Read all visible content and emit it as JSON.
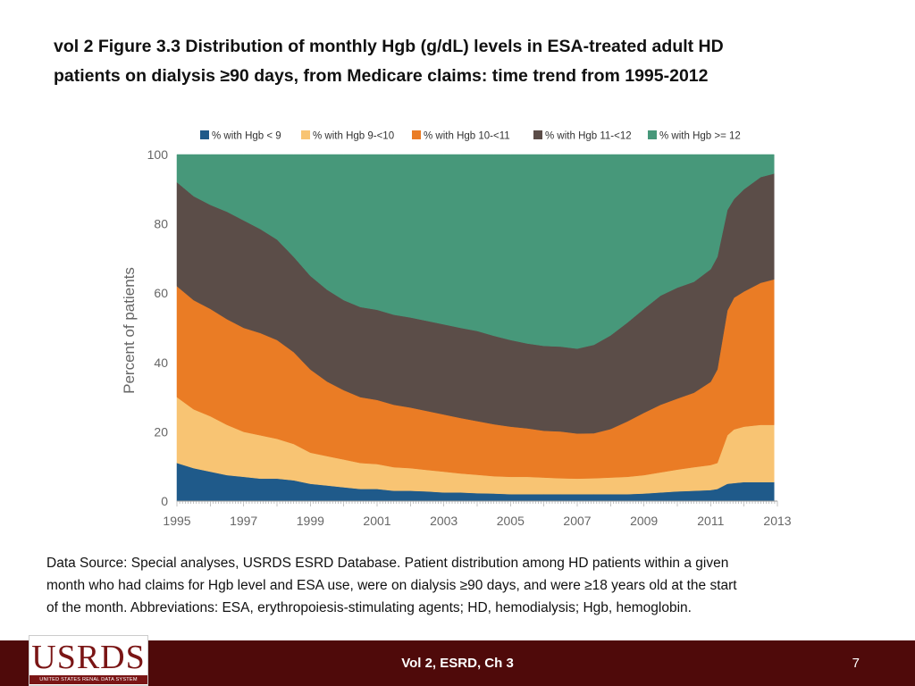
{
  "slide": {
    "title_line1": "vol 2  Figure 3.3 Distribution of monthly Hgb (g/dL) levels in ESA-treated adult HD",
    "title_line2": "patients on dialysis ≥90 days, from Medicare claims: time trend from 1995-2012",
    "source_line1": "Data Source: Special analyses, USRDS ESRD Database. Patient distribution among HD patients within a given",
    "source_line2": "month who had claims for Hgb level and ESA use, were on dialysis ≥90 days, and were ≥18 years old at the start",
    "source_line3": "of the month. Abbreviations: ESA, erythropoiesis-stimulating agents; HD, hemodialysis; Hgb, hemoglobin."
  },
  "footer": {
    "label": "Vol 2, ESRD, Ch 3",
    "page_number": "7",
    "logo_text": "USRDS",
    "logo_subtext": "UNITED STATES RENAL DATA SYSTEM",
    "background": "#4f0a0a"
  },
  "chart_data": {
    "type": "area",
    "stacked": true,
    "title": "",
    "xlabel": "",
    "ylabel": "Percent of patients",
    "xlim": [
      1995,
      2013
    ],
    "ylim": [
      0,
      100
    ],
    "x_ticks": [
      "1995",
      "1997",
      "1999",
      "2001",
      "2003",
      "2005",
      "2007",
      "2009",
      "2011",
      "2013"
    ],
    "y_ticks": [
      "0",
      "20",
      "40",
      "60",
      "80",
      "100"
    ],
    "legend_position": "top",
    "x": [
      1995.0,
      1995.5,
      1996.0,
      1996.5,
      1997.0,
      1997.5,
      1998.0,
      1998.5,
      1999.0,
      1999.5,
      2000.0,
      2000.5,
      2001.0,
      2001.5,
      2002.0,
      2002.5,
      2003.0,
      2003.5,
      2004.0,
      2004.5,
      2005.0,
      2005.5,
      2006.0,
      2006.5,
      2007.0,
      2007.5,
      2008.0,
      2008.5,
      2009.0,
      2009.5,
      2010.0,
      2010.5,
      2011.0,
      2011.2,
      2011.5,
      2011.7,
      2012.0,
      2012.5,
      2012.9
    ],
    "series": [
      {
        "name": "% with Hgb < 9",
        "color": "#1f5a8a",
        "values": [
          11,
          9.5,
          8.5,
          7.5,
          7,
          6.5,
          6.5,
          6,
          5,
          4.5,
          4,
          3.5,
          3.5,
          3,
          3,
          2.8,
          2.5,
          2.5,
          2.3,
          2.2,
          2,
          2,
          2,
          2,
          2,
          2,
          2,
          2,
          2.2,
          2.5,
          2.8,
          3,
          3.2,
          3.5,
          5,
          5.2,
          5.5,
          5.5,
          5.5
        ]
      },
      {
        "name": "% with Hgb 9-<10",
        "color": "#f8c473",
        "values": [
          19,
          17,
          16,
          14.5,
          13,
          12.5,
          11.5,
          10.5,
          9,
          8.5,
          8,
          7.5,
          7.2,
          6.8,
          6.5,
          6.2,
          6,
          5.5,
          5.3,
          5,
          5,
          5,
          4.8,
          4.6,
          4.5,
          4.6,
          4.8,
          5,
          5.3,
          5.8,
          6.3,
          6.8,
          7.2,
          7.5,
          14,
          15.5,
          16,
          16.5,
          16.5
        ]
      },
      {
        "name": "% with Hgb 10-<11",
        "color": "#ea7c25",
        "values": [
          32,
          31.5,
          31,
          30.5,
          30,
          29.5,
          28.5,
          26.5,
          24,
          21.5,
          20,
          19,
          18.5,
          18,
          17.5,
          17,
          16.5,
          16,
          15.5,
          15,
          14.5,
          14,
          13.5,
          13.5,
          13,
          13,
          14,
          16,
          18,
          19.5,
          20.5,
          21.5,
          24,
          27,
          36,
          38,
          39,
          41,
          42
        ]
      },
      {
        "name": "% with Hgb 11-<12",
        "color": "#5b4d48",
        "values": [
          30,
          30,
          30,
          31,
          31,
          30,
          29,
          27.5,
          27,
          26.5,
          26,
          26,
          26,
          26,
          26,
          26,
          26,
          26,
          26,
          25.5,
          25,
          24.5,
          24.5,
          24.5,
          24.5,
          25.5,
          27,
          28.5,
          30,
          31.5,
          32,
          32,
          32.5,
          32.5,
          29,
          28.5,
          29.5,
          30.5,
          30.5
        ]
      },
      {
        "name": "% with Hgb >= 12",
        "color": "#47987a",
        "values": [
          8,
          12,
          14.5,
          16.5,
          19,
          21.5,
          24.5,
          29.5,
          35,
          39,
          42,
          44,
          44.8,
          46.2,
          47,
          48,
          49,
          50,
          50.9,
          52.3,
          53.5,
          54.5,
          55.2,
          55.4,
          56,
          54.9,
          52.2,
          48.5,
          44.5,
          40.7,
          38.4,
          36.7,
          34.1,
          29.5,
          16,
          12.8,
          10,
          6.5,
          5.5
        ]
      }
    ]
  }
}
